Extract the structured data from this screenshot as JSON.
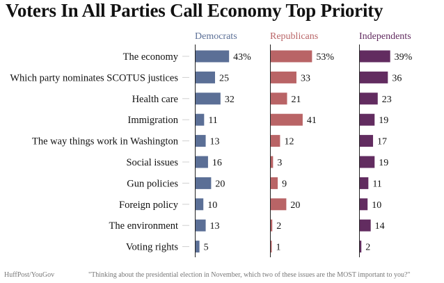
{
  "chart_data": {
    "type": "bar",
    "orientation": "horizontal",
    "title": "Voters In All Parties Call Economy Top Priority",
    "categories": [
      "The economy",
      "Which party nominates SCOTUS justices",
      "Health care",
      "Immigration",
      "The way things work in Washington",
      "Social issues",
      "Gun policies",
      "Foreign policy",
      "The environment",
      "Voting rights"
    ],
    "series": [
      {
        "name": "Democrats",
        "color": "#5b6f96",
        "values": [
          43,
          25,
          32,
          11,
          13,
          16,
          20,
          10,
          13,
          5
        ]
      },
      {
        "name": "Republicans",
        "color": "#b96466",
        "values": [
          53,
          33,
          21,
          41,
          12,
          3,
          9,
          20,
          2,
          1
        ]
      },
      {
        "name": "Independents",
        "color": "#622c60",
        "values": [
          39,
          36,
          23,
          19,
          17,
          19,
          11,
          10,
          14,
          2
        ]
      }
    ],
    "value_suffix_first_row": "%",
    "xlim": [
      0,
      100
    ],
    "grid": false,
    "source": "HuffPost/YouGov",
    "note": "\"Thinking about the presidential election in November, which two of these issues are the MOST important to you?\""
  }
}
